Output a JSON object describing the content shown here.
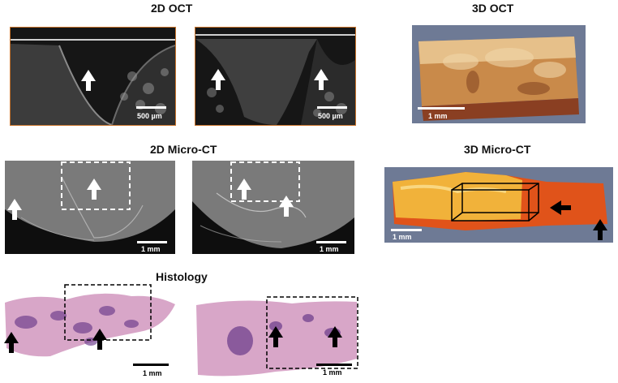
{
  "sections": {
    "oct2d": {
      "title": "2D OCT"
    },
    "oct3d": {
      "title": "3D OCT"
    },
    "microct2d": {
      "title": "2D Micro-CT"
    },
    "microct3d": {
      "title": "3D Micro-CT"
    },
    "histology": {
      "title": "Histology"
    }
  },
  "scale_bars": {
    "oct2d_left": "500 µm",
    "oct2d_right": "500 µm",
    "oct3d": "1 mm",
    "microct2d_left": "1 mm",
    "microct2d_right": "1 mm",
    "microct3d": "1 mm",
    "histology_left": "1 mm",
    "histology_right": "1 mm"
  },
  "colors": {
    "oct_background": "#1a1a1a",
    "oct3d_tissue": "#c98a4a",
    "microct_background": "#7a7a7a",
    "microct3d_tissue": "#e0531a",
    "histology_pink": "#d8a6c8",
    "histology_purple": "#6a3a8a",
    "arrow_white": "#ffffff",
    "arrow_black": "#000000"
  },
  "icons": {
    "arrow": "up-arrow-icon",
    "left_arrow": "left-arrow-icon"
  }
}
